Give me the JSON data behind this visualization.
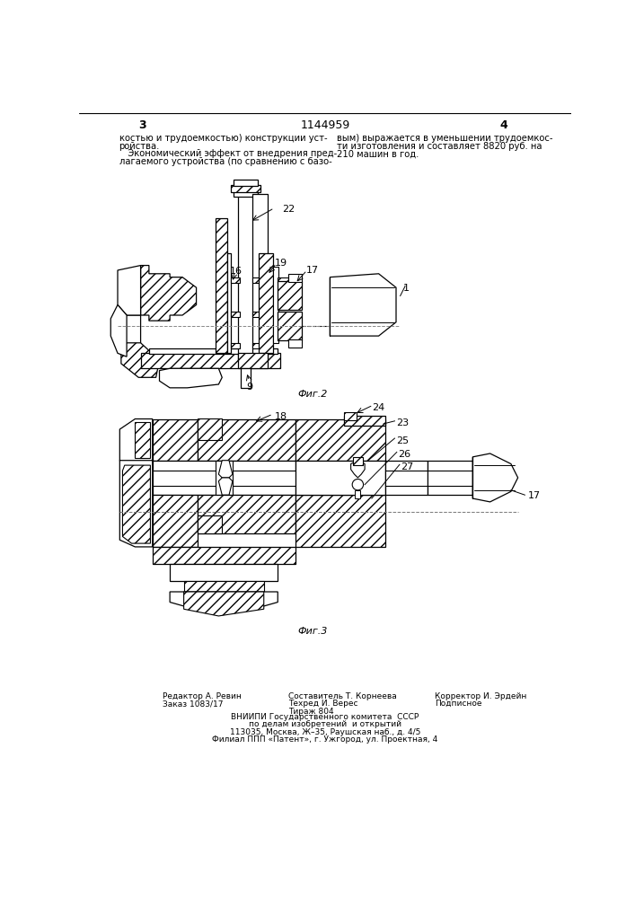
{
  "page_number_center": "1144959",
  "page_num_left": "3",
  "page_num_right": "4",
  "text_left_col": [
    "костью и трудоемкостью) конструкции уст-",
    "ройства.",
    "   Экономический эффект от внедрения пред-",
    "лагаемого устройства (по сравнению с базо-"
  ],
  "text_right_col": [
    "вым) выражается в уменьшении трудоемкос-",
    "ти изготовления и составляет 8820 руб. на",
    "210 машин в год."
  ],
  "fig2_caption": "Фиг.2",
  "fig3_caption": "Фиг.3",
  "footer_col1": [
    "Редактор А. Ревин",
    "Заказ 1083/17"
  ],
  "footer_col2": [
    "Составитель Т. Корнеева",
    "Тираж 804",
    "Техред И. Верес"
  ],
  "footer_col3": [
    "Корректор И. Эрдейн",
    "Подписное"
  ],
  "footer_center": [
    "ВНИИПИ Государственного комитета  СССР",
    "по делам изобретений  и открытий",
    "113035, Москва, Ж–35, Раушская наб., д. 4/5",
    "Филиал ППП «Патент», г. Ужгород, ул. Проектная, 4"
  ],
  "bg_color": "#ffffff"
}
